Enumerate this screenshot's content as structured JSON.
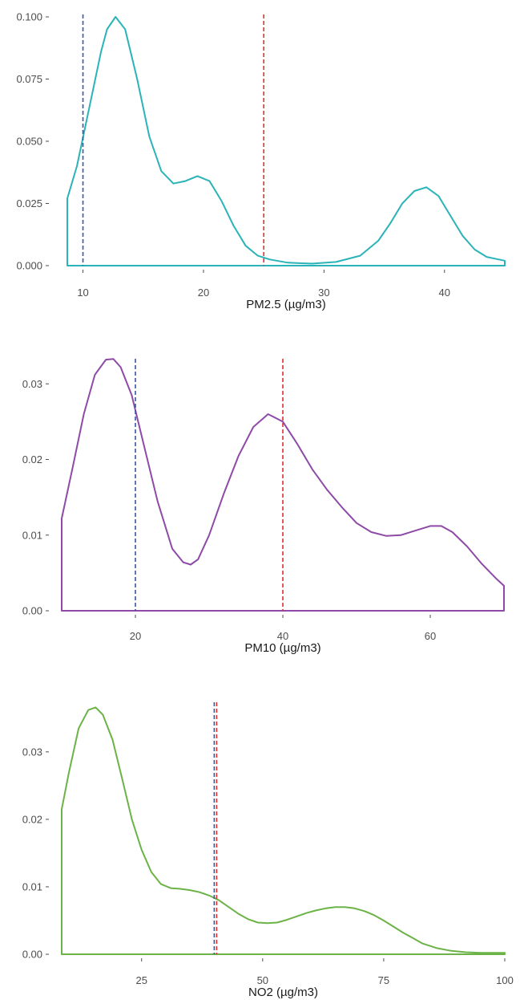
{
  "colors": {
    "pm25": "#2ab3b8",
    "pm10": "#8e4aa6",
    "no2": "#6cb347",
    "who_guideline": "#3556a8",
    "eu_limit": "#e0312f"
  },
  "chart_data": [
    {
      "type": "area",
      "xlabel": "PM2.5 (µg/m3)",
      "ylabel": "",
      "grid": false,
      "xlim": [
        8.7,
        45
      ],
      "ylim": [
        0,
        0.1
      ],
      "x_ticks": [
        "10",
        "20",
        "30",
        "40"
      ],
      "y_ticks": [
        "0.000",
        "0.025",
        "0.050",
        "0.075",
        "0.100"
      ],
      "reference_lines": [
        {
          "x": 10,
          "style": "dashed",
          "color": "blue"
        },
        {
          "x": 25,
          "style": "dashed",
          "color": "red"
        }
      ],
      "series": [
        {
          "x": [
            8.7,
            9.5,
            10.5,
            11.5,
            12,
            12.7,
            13.5,
            14.5,
            15.5,
            16.5,
            17.5,
            18.5,
            19.5,
            20.5,
            21.5,
            22.5,
            23.5,
            24.5,
            25.5,
            27,
            29,
            31,
            33,
            34.5,
            35.5,
            36.5,
            37.5,
            38.5,
            39.5,
            40.5,
            41.5,
            42.5,
            43.5,
            44.5,
            45
          ],
          "y": [
            0.027,
            0.04,
            0.063,
            0.086,
            0.095,
            0.1,
            0.095,
            0.075,
            0.052,
            0.038,
            0.033,
            0.034,
            0.036,
            0.034,
            0.026,
            0.016,
            0.008,
            0.004,
            0.0025,
            0.0012,
            0.0008,
            0.0015,
            0.004,
            0.01,
            0.017,
            0.025,
            0.03,
            0.0315,
            0.028,
            0.02,
            0.012,
            0.0065,
            0.0035,
            0.0025,
            0.002
          ]
        }
      ]
    },
    {
      "type": "area",
      "xlabel": "PM10 (µg/m3)",
      "ylabel": "",
      "grid": false,
      "xlim": [
        10,
        70
      ],
      "ylim": [
        0,
        0.033
      ],
      "x_ticks": [
        "20",
        "40",
        "60"
      ],
      "y_ticks": [
        "0.00",
        "0.01",
        "0.02",
        "0.03"
      ],
      "reference_lines": [
        {
          "x": 20,
          "style": "dashed",
          "color": "blue"
        },
        {
          "x": 40,
          "style": "dashed",
          "color": "red"
        }
      ],
      "series": [
        {
          "x": [
            10,
            11.5,
            13,
            14.5,
            16,
            17,
            18,
            19.5,
            21,
            23,
            25,
            26.5,
            27.5,
            28.5,
            30,
            32,
            34,
            36,
            38,
            40,
            42,
            44,
            46,
            48,
            50,
            52,
            54,
            56,
            58,
            60,
            61.5,
            63,
            65,
            67,
            69,
            70
          ],
          "y": [
            0.0122,
            0.019,
            0.026,
            0.0312,
            0.0332,
            0.0333,
            0.0322,
            0.0285,
            0.0225,
            0.0145,
            0.0082,
            0.0064,
            0.0061,
            0.0068,
            0.01,
            0.0155,
            0.0205,
            0.0243,
            0.026,
            0.025,
            0.022,
            0.0187,
            0.016,
            0.0137,
            0.0116,
            0.0104,
            0.0099,
            0.01,
            0.0106,
            0.0112,
            0.0112,
            0.0104,
            0.0085,
            0.0062,
            0.0042,
            0.0033
          ]
        }
      ]
    },
    {
      "type": "area",
      "xlabel": "NO2 (µg/m3)",
      "ylabel": "",
      "grid": false,
      "xlim": [
        8.5,
        100
      ],
      "ylim": [
        0,
        0.037
      ],
      "x_ticks": [
        "25",
        "50",
        "75",
        "100"
      ],
      "y_ticks": [
        "0.00",
        "0.01",
        "0.02",
        "0.03"
      ],
      "reference_lines": [
        {
          "x": 40,
          "style": "dashed",
          "color": "blue"
        },
        {
          "x": 40.5,
          "style": "dashed",
          "color": "red"
        }
      ],
      "series": [
        {
          "x": [
            8.5,
            10,
            12,
            14,
            15.5,
            17,
            19,
            21,
            23,
            25,
            27,
            29,
            31,
            33,
            35,
            37,
            39,
            41,
            43,
            45,
            47,
            49,
            51,
            53,
            55,
            57,
            59,
            61,
            63,
            65,
            67,
            69,
            71,
            73,
            75,
            77,
            79,
            81,
            83,
            86,
            89,
            92,
            95,
            98,
            100
          ],
          "y": [
            0.0215,
            0.027,
            0.0335,
            0.0362,
            0.0366,
            0.0355,
            0.0318,
            0.026,
            0.02,
            0.0155,
            0.0122,
            0.0104,
            0.0098,
            0.0097,
            0.0095,
            0.0092,
            0.0087,
            0.008,
            0.007,
            0.006,
            0.0052,
            0.0047,
            0.0046,
            0.0047,
            0.0051,
            0.0056,
            0.0061,
            0.0065,
            0.0068,
            0.007,
            0.007,
            0.0068,
            0.0064,
            0.0058,
            0.005,
            0.0041,
            0.0032,
            0.0024,
            0.0016,
            0.0009,
            0.0005,
            0.0003,
            0.0002,
            0.0002,
            0.0002
          ]
        }
      ]
    }
  ]
}
